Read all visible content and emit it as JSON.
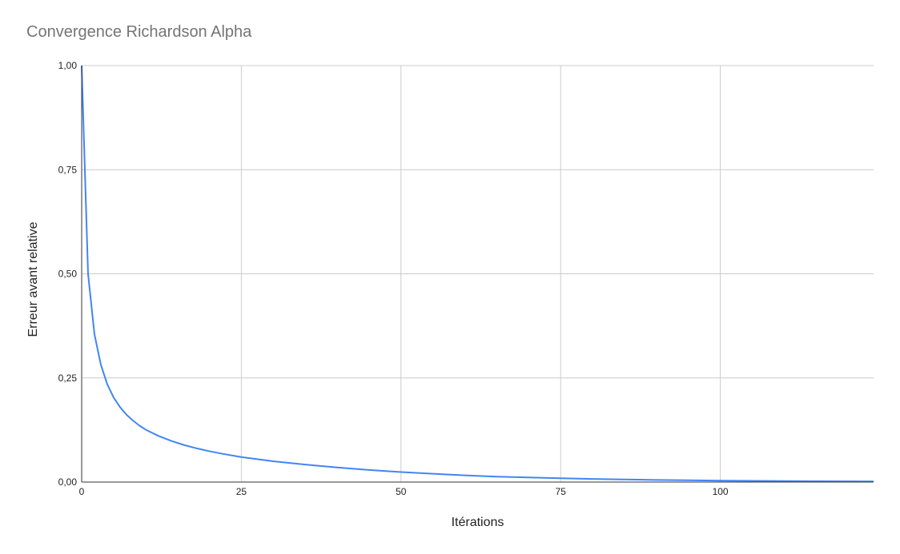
{
  "chart_data": {
    "type": "line",
    "title": "Convergence Richardson Alpha",
    "xlabel": "Itérations",
    "ylabel": "Erreur avant relative",
    "xlim": [
      0,
      124
    ],
    "ylim": [
      0,
      1
    ],
    "x_ticks": [
      0,
      25,
      50,
      75,
      100
    ],
    "x_tick_labels": [
      "0",
      "25",
      "50",
      "75",
      "100"
    ],
    "y_ticks": [
      0,
      0.25,
      0.5,
      0.75,
      1
    ],
    "y_tick_labels": [
      "0,00",
      "0,25",
      "0,50",
      "0,75",
      "1,00"
    ],
    "grid": true,
    "legend": "none",
    "series": [
      {
        "color": "#4285f4",
        "x": [
          0,
          1,
          2,
          3,
          4,
          5,
          6,
          7,
          8,
          9,
          10,
          12,
          14,
          16,
          18,
          20,
          22,
          25,
          30,
          35,
          40,
          45,
          50,
          55,
          60,
          65,
          70,
          75,
          80,
          85,
          90,
          95,
          100,
          105,
          110,
          115,
          120,
          124
        ],
        "y": [
          1.0,
          0.5,
          0.355,
          0.282,
          0.235,
          0.203,
          0.18,
          0.162,
          0.148,
          0.136,
          0.126,
          0.111,
          0.099,
          0.089,
          0.081,
          0.074,
          0.068,
          0.06,
          0.05,
          0.042,
          0.035,
          0.029,
          0.024,
          0.02,
          0.016,
          0.013,
          0.011,
          0.009,
          0.0075,
          0.0062,
          0.0051,
          0.0042,
          0.0034,
          0.0028,
          0.0023,
          0.0019,
          0.0016,
          0.0014
        ]
      }
    ]
  }
}
